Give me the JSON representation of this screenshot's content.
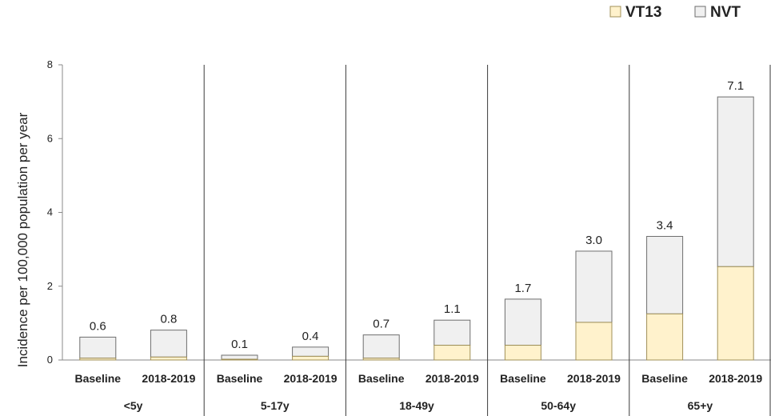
{
  "chart_data": {
    "type": "bar",
    "stacked": true,
    "ylabel": "Incidence per 100,000 population per year",
    "ylim": [
      0,
      8
    ],
    "yticks": [
      0,
      2,
      4,
      6,
      8
    ],
    "grid": false,
    "legend_position": "top-right",
    "colors": {
      "VT13": "#fff2cc",
      "NVT": "#f0f0f0",
      "edge_VT13": "#a09058",
      "edge_NVT": "#6e6e6e"
    },
    "groups": [
      {
        "label": "<5y",
        "bars": [
          {
            "category": "Baseline",
            "VT13": 0.05,
            "NVT": 0.57,
            "total_label": "0.6"
          },
          {
            "category": "2018-2019",
            "VT13": 0.08,
            "NVT": 0.73,
            "total_label": "0.8"
          }
        ]
      },
      {
        "label": "5-17y",
        "bars": [
          {
            "category": "Baseline",
            "VT13": 0.02,
            "NVT": 0.11,
            "total_label": "0.1"
          },
          {
            "category": "2018-2019",
            "VT13": 0.1,
            "NVT": 0.25,
            "total_label": "0.4"
          }
        ]
      },
      {
        "label": "18-49y",
        "bars": [
          {
            "category": "Baseline",
            "VT13": 0.05,
            "NVT": 0.63,
            "total_label": "0.7"
          },
          {
            "category": "2018-2019",
            "VT13": 0.4,
            "NVT": 0.68,
            "total_label": "1.1"
          }
        ]
      },
      {
        "label": "50-64y",
        "bars": [
          {
            "category": "Baseline",
            "VT13": 0.4,
            "NVT": 1.25,
            "total_label": "1.7"
          },
          {
            "category": "2018-2019",
            "VT13": 1.02,
            "NVT": 1.93,
            "total_label": "3.0"
          }
        ]
      },
      {
        "label": "65+y",
        "bars": [
          {
            "category": "Baseline",
            "VT13": 1.25,
            "NVT": 2.1,
            "total_label": "3.4"
          },
          {
            "category": "2018-2019",
            "VT13": 2.53,
            "NVT": 4.6,
            "total_label": "7.1"
          }
        ]
      }
    ],
    "series": [
      {
        "name": "VT13"
      },
      {
        "name": "NVT"
      }
    ]
  }
}
